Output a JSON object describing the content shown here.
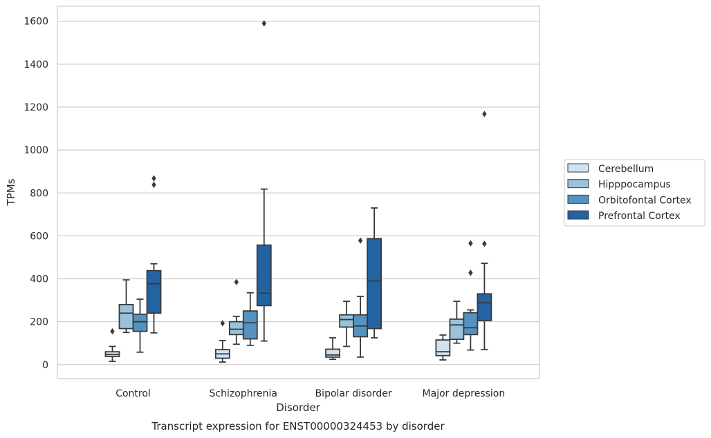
{
  "chart_data": {
    "type": "box",
    "title": "Transcript expression for ENST00000324453 by disorder",
    "xlabel": "Disorder",
    "ylabel": "TPMs",
    "ylim": [
      -65,
      1670
    ],
    "yticks": [
      0,
      200,
      400,
      600,
      800,
      1000,
      1200,
      1400,
      1600
    ],
    "categories": [
      "Control",
      "Schizophrenia",
      "Bipolar disorder",
      "Major depression"
    ],
    "grid": "horizontal",
    "legend_position": "right",
    "series": [
      {
        "name": "Cerebellum",
        "color": "#d1e2f1",
        "boxes": [
          {
            "whisker_low": 15,
            "q1": 38,
            "median": 47,
            "q3": 60,
            "whisker_high": 85,
            "outliers": [
              155
            ]
          },
          {
            "whisker_low": 12,
            "q1": 30,
            "median": 50,
            "q3": 70,
            "whisker_high": 112,
            "outliers": [
              193
            ]
          },
          {
            "whisker_low": 25,
            "q1": 35,
            "median": 45,
            "q3": 72,
            "whisker_high": 125,
            "outliers": []
          },
          {
            "whisker_low": 22,
            "q1": 42,
            "median": 60,
            "q3": 115,
            "whisker_high": 138,
            "outliers": []
          }
        ]
      },
      {
        "name": "Hipppocampus",
        "color": "#9ac2dc",
        "boxes": [
          {
            "whisker_low": 150,
            "q1": 168,
            "median": 240,
            "q3": 280,
            "whisker_high": 395,
            "outliers": []
          },
          {
            "whisker_low": 95,
            "q1": 140,
            "median": 165,
            "q3": 200,
            "whisker_high": 225,
            "outliers": [
              385
            ]
          },
          {
            "whisker_low": 85,
            "q1": 175,
            "median": 210,
            "q3": 232,
            "whisker_high": 295,
            "outliers": []
          },
          {
            "whisker_low": 100,
            "q1": 118,
            "median": 185,
            "q3": 212,
            "whisker_high": 295,
            "outliers": []
          }
        ]
      },
      {
        "name": "Orbitofontal Cortex",
        "color": "#5493c1",
        "boxes": [
          {
            "whisker_low": 58,
            "q1": 155,
            "median": 200,
            "q3": 235,
            "whisker_high": 305,
            "outliers": []
          },
          {
            "whisker_low": 90,
            "q1": 120,
            "median": 195,
            "q3": 250,
            "whisker_high": 335,
            "outliers": []
          },
          {
            "whisker_low": 35,
            "q1": 130,
            "median": 180,
            "q3": 232,
            "whisker_high": 318,
            "outliers": [
              578
            ]
          },
          {
            "whisker_low": 68,
            "q1": 140,
            "median": 172,
            "q3": 242,
            "whisker_high": 255,
            "outliers": [
              428,
              565
            ]
          }
        ]
      },
      {
        "name": "Prefrontal Cortex",
        "color": "#2363a2",
        "boxes": [
          {
            "whisker_low": 148,
            "q1": 240,
            "median": 377,
            "q3": 438,
            "whisker_high": 470,
            "outliers": [
              838,
              868
            ]
          },
          {
            "whisker_low": 110,
            "q1": 275,
            "median": 333,
            "q3": 557,
            "whisker_high": 818,
            "outliers": [
              1590
            ]
          },
          {
            "whisker_low": 125,
            "q1": 168,
            "median": 390,
            "q3": 587,
            "whisker_high": 730,
            "outliers": []
          },
          {
            "whisker_low": 70,
            "q1": 205,
            "median": 288,
            "q3": 330,
            "whisker_high": 472,
            "outliers": [
              563,
              1168
            ]
          }
        ]
      }
    ]
  }
}
